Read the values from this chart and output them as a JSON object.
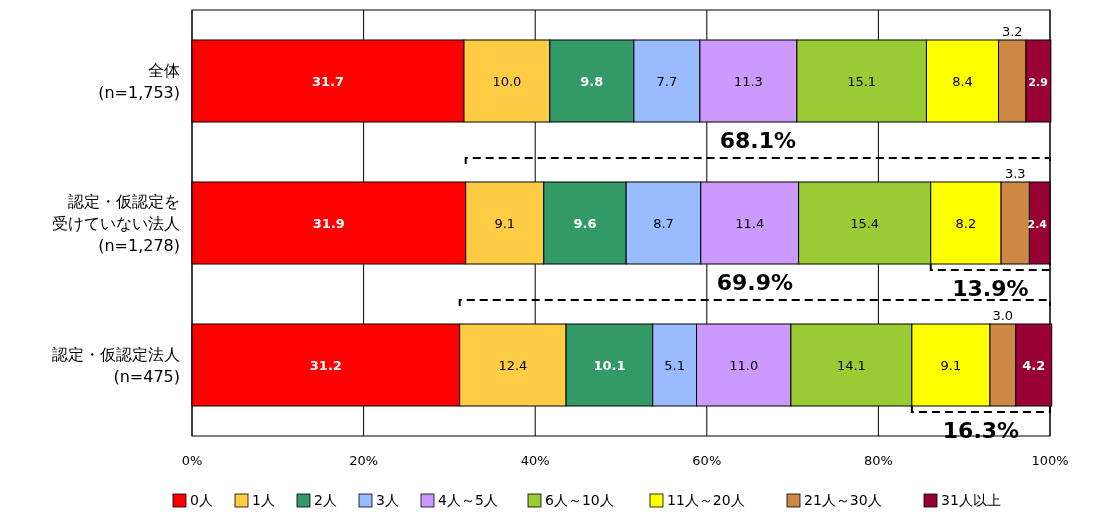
{
  "chart_data": {
    "type": "bar",
    "orientation": "horizontal",
    "stacked": true,
    "categories": [
      "全体(n=1,753)",
      "認定・仮認定を受けていない法人(n=1,278)",
      "認定・仮認定法人(n=475)"
    ],
    "series": [
      {
        "name": "0人",
        "color": "#ff0000",
        "values": [
          31.7,
          31.9,
          31.2
        ],
        "value_labels": [
          "31.7",
          "31.9",
          "31.2"
        ]
      },
      {
        "name": "1人",
        "color": "#ffcc44",
        "values": [
          10.0,
          9.1,
          12.4
        ],
        "value_labels": [
          "10.0",
          "9.1",
          "12.4"
        ]
      },
      {
        "name": "2人",
        "color": "#339966",
        "values": [
          9.8,
          9.6,
          10.1
        ],
        "value_labels": [
          "9.8",
          "9.6",
          "10.1"
        ]
      },
      {
        "name": "3人",
        "color": "#99bbff",
        "values": [
          7.7,
          8.7,
          5.1
        ],
        "value_labels": [
          "7.7",
          "8.7",
          "5.1"
        ]
      },
      {
        "name": "4人～5人",
        "color": "#cc99ff",
        "values": [
          11.3,
          11.4,
          11.0
        ],
        "value_labels": [
          "11.3",
          "11.4",
          "11.0"
        ]
      },
      {
        "name": "6人～10人",
        "color": "#99cc33",
        "values": [
          15.1,
          15.4,
          14.1
        ],
        "value_labels": [
          "15.1",
          "15.4",
          "14.1"
        ]
      },
      {
        "name": "11人～20人",
        "color": "#ffff00",
        "values": [
          8.4,
          8.2,
          9.1
        ],
        "value_labels": [
          "8.4",
          "8.2",
          "9.1"
        ]
      },
      {
        "name": "21人～30人",
        "color": "#cc8844",
        "values": [
          3.2,
          3.3,
          3.0
        ],
        "value_labels": [
          "3.2",
          "3.3",
          "3.0"
        ]
      },
      {
        "name": "31人以上",
        "color": "#990033",
        "values": [
          2.9,
          2.4,
          4.2
        ],
        "value_labels": [
          "2.9",
          "2.4",
          "4.2"
        ]
      }
    ],
    "xlim": [
      0,
      100
    ],
    "xticks": [
      {
        "value": 0,
        "label": "0%"
      },
      {
        "value": 20,
        "label": "20%"
      },
      {
        "value": 40,
        "label": "40%"
      },
      {
        "value": 60,
        "label": "60%"
      },
      {
        "value": 80,
        "label": "80%"
      },
      {
        "value": 100,
        "label": "100%"
      }
    ],
    "grid": "x",
    "legend": "bottom",
    "annotations": [
      "68.1%",
      "13.9%",
      "69.9%",
      "16.3%"
    ]
  }
}
